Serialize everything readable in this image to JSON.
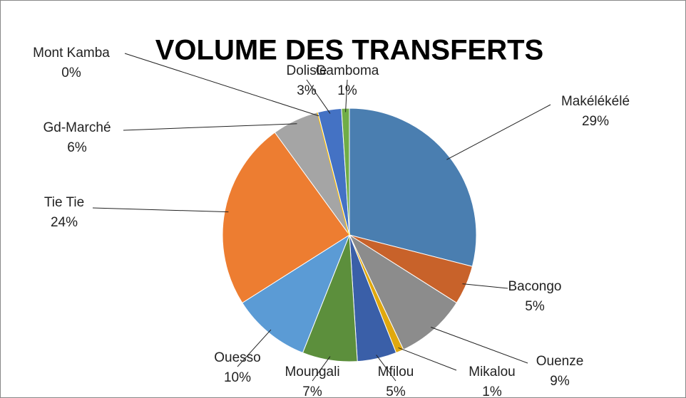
{
  "chart_data": {
    "type": "pie",
    "title": "VOLUME DES TRANSFERTS",
    "categories": [
      "Makélékélé",
      "Bacongo",
      "Ouenze",
      "Mikalou",
      "Mfilou",
      "Moungali",
      "Ouesso",
      "Tie Tie",
      "Gd-Marché",
      "Mont Kamba",
      "Dolisie",
      "Gamboma"
    ],
    "values": [
      29,
      5,
      9,
      1,
      5,
      7,
      10,
      24,
      6,
      0,
      3,
      1
    ],
    "value_labels": [
      "29%",
      "5%",
      "9%",
      "1%",
      "5%",
      "7%",
      "10%",
      "24%",
      "6%",
      "0%",
      "3%",
      "1%"
    ],
    "colors": [
      "#4a7eb0",
      "#c8622a",
      "#8c8c8c",
      "#e0a80e",
      "#3a5fa8",
      "#5c8f3c",
      "#5b9bd5",
      "#ed7d31",
      "#a5a5a5",
      "#ffc000",
      "#4472c4",
      "#70ad47"
    ]
  }
}
